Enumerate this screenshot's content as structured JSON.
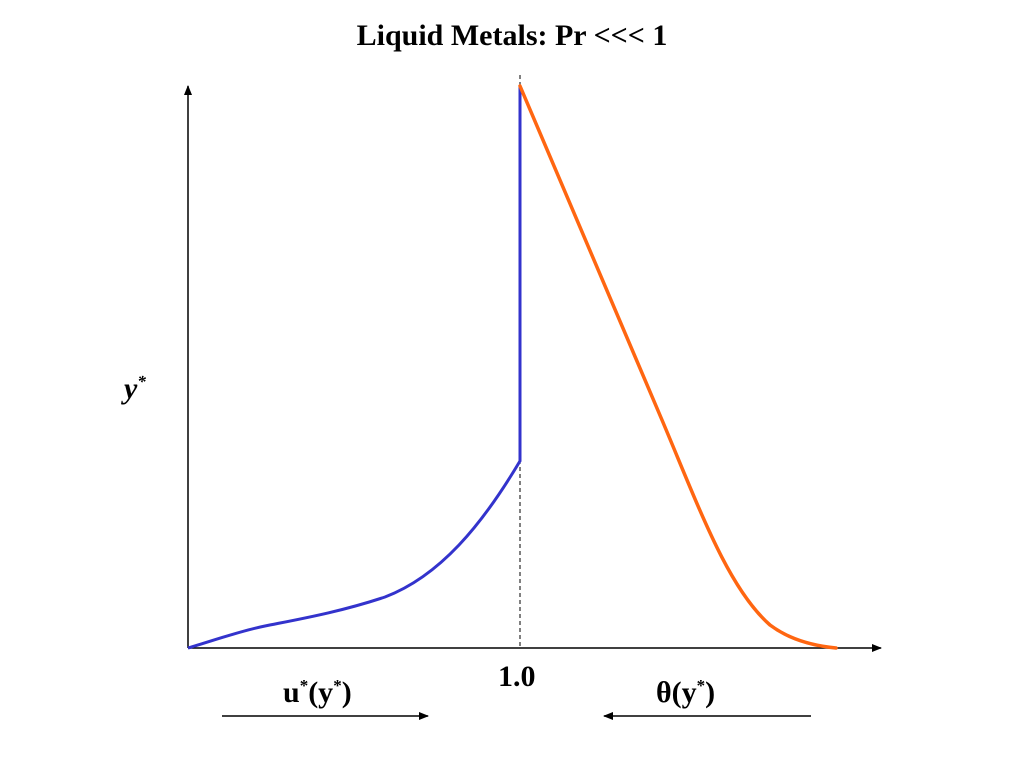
{
  "title": "Liquid Metals: Pr <<< 1",
  "y_axis": {
    "symbol": "y",
    "superscript": "*"
  },
  "x_tick": "1.0",
  "velocity_label": {
    "main": "u",
    "sup1": "*",
    "open": "(y",
    "sup2": "*",
    "close": ")"
  },
  "temperature_label": {
    "main": "θ(y",
    "sup": "*",
    "close": ")"
  },
  "colors": {
    "velocity_curve": "#3333cc",
    "temperature_curve": "#ff6611",
    "axes": "#000000"
  }
}
